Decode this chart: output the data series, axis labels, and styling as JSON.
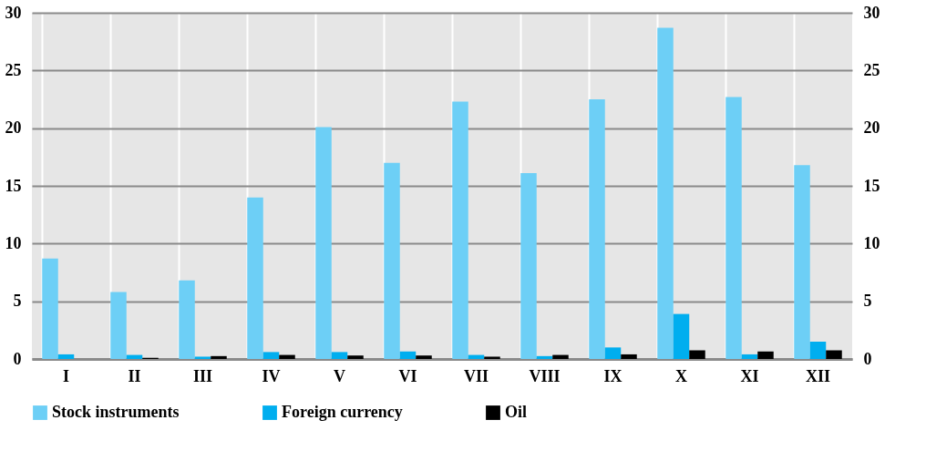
{
  "chart_data": {
    "type": "bar",
    "categories": [
      "I",
      "II",
      "III",
      "IV",
      "V",
      "VI",
      "VII",
      "VIII",
      "IX",
      "X",
      "XI",
      "XII"
    ],
    "series": [
      {
        "name": "Stock instruments",
        "color": "#6dcff6",
        "values": [
          8.7,
          5.8,
          6.8,
          14.0,
          20.1,
          17.0,
          22.3,
          16.1,
          22.5,
          28.7,
          22.7,
          16.8
        ]
      },
      {
        "name": "Foreign currency",
        "color": "#00aeef",
        "values": [
          0.4,
          0.35,
          0.2,
          0.6,
          0.6,
          0.65,
          0.35,
          0.25,
          1.0,
          3.9,
          0.4,
          1.5
        ]
      },
      {
        "name": "Oil",
        "color": "#000000",
        "values": [
          0,
          0.1,
          0.25,
          0.35,
          0.3,
          0.3,
          0.2,
          0.35,
          0.4,
          0.75,
          0.65,
          0.75
        ]
      }
    ],
    "ylim": [
      0,
      30
    ],
    "yticks": [
      0,
      5,
      10,
      15,
      20,
      25,
      30
    ],
    "y2lim": [
      0,
      30
    ],
    "y2ticks": [
      0,
      5,
      10,
      15,
      20,
      25,
      30
    ],
    "grid": true,
    "legend": "bottom"
  }
}
